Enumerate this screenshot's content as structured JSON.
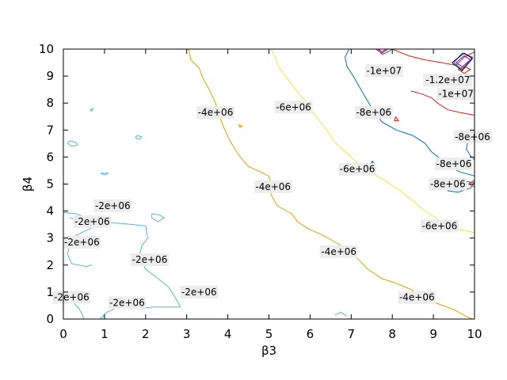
{
  "chart_data": {
    "type": "contour",
    "title": "",
    "xlabel": "β3",
    "ylabel": "β4",
    "xlim": [
      0,
      10
    ],
    "ylim": [
      0,
      10
    ],
    "x_ticks": [
      "0",
      "1",
      "2",
      "3",
      "4",
      "5",
      "6",
      "7",
      "8",
      "9",
      "10"
    ],
    "y_ticks": [
      "0",
      "1",
      "2",
      "3",
      "4",
      "5",
      "6",
      "7",
      "8",
      "9",
      "10"
    ],
    "grid": false,
    "levels": [
      {
        "level": "-2e+06",
        "color": "#56b4e9",
        "paths": [
          [
            [
              0.15,
              3.75
            ],
            [
              0.5,
              3.6
            ],
            [
              0.9,
              3.6
            ],
            [
              1.3,
              3.55
            ],
            [
              1.7,
              3.5
            ],
            [
              2.0,
              3.45
            ],
            [
              2.05,
              3.0
            ],
            [
              1.9,
              2.7
            ],
            [
              1.85,
              2.3
            ],
            [
              2.0,
              1.85
            ],
            [
              2.3,
              1.5
            ],
            [
              2.55,
              1.2
            ],
            [
              2.7,
              0.85
            ],
            [
              2.85,
              0.45
            ],
            [
              2.6,
              0.45
            ],
            [
              2.2,
              0.45
            ],
            [
              1.9,
              0.4
            ],
            [
              1.6,
              0.45
            ],
            [
              1.35,
              0.45
            ],
            [
              1.05,
              0.25
            ],
            [
              0.9,
              0.0
            ]
          ],
          [
            [
              0.0,
              3.95
            ],
            [
              0.3,
              3.9
            ],
            [
              0.5,
              3.8
            ],
            [
              0.9,
              3.6
            ],
            [
              0.8,
              3.45
            ],
            [
              0.5,
              3.25
            ],
            [
              0.25,
              3.05
            ],
            [
              0.15,
              2.75
            ],
            [
              0.1,
              2.4
            ],
            [
              0.2,
              2.05
            ],
            [
              0.55,
              1.95
            ],
            [
              0.7,
              2.0
            ]
          ],
          [
            [
              0.0,
              0.8
            ],
            [
              0.2,
              0.65
            ],
            [
              0.35,
              0.45
            ],
            [
              0.45,
              0.2
            ],
            [
              0.5,
              0.0
            ]
          ],
          [
            [
              0.15,
              6.6
            ],
            [
              0.3,
              6.55
            ],
            [
              0.35,
              6.45
            ],
            [
              0.2,
              6.4
            ],
            [
              0.1,
              6.5
            ],
            [
              0.15,
              6.6
            ]
          ],
          [
            [
              1.8,
              6.8
            ],
            [
              1.9,
              6.75
            ],
            [
              1.85,
              6.65
            ],
            [
              1.75,
              6.72
            ],
            [
              1.8,
              6.8
            ]
          ],
          [
            [
              2.15,
              3.9
            ],
            [
              2.35,
              3.85
            ],
            [
              2.45,
              3.75
            ],
            [
              2.3,
              3.6
            ],
            [
              2.15,
              3.75
            ],
            [
              2.15,
              3.9
            ]
          ],
          [
            [
              0.9,
              5.4
            ],
            [
              1.1,
              5.4
            ],
            [
              1.0,
              5.35
            ],
            [
              0.9,
              5.4
            ]
          ],
          [
            [
              0.65,
              7.75
            ],
            [
              0.72,
              7.8
            ],
            [
              0.68,
              7.7
            ],
            [
              0.65,
              7.75
            ]
          ],
          [
            [
              6.6,
              0.15
            ],
            [
              6.75,
              0.25
            ],
            [
              6.9,
              0.1
            ]
          ]
        ],
        "labels": [
          {
            "text": "-2e+06",
            "x": 1.2,
            "y": 4.2
          },
          {
            "text": "-2e+06",
            "x": 0.7,
            "y": 3.6
          },
          {
            "text": "-2e+06",
            "x": 0.45,
            "y": 2.85
          },
          {
            "text": "-2e+06",
            "x": 2.1,
            "y": 2.2
          },
          {
            "text": "-2e+06",
            "x": 3.3,
            "y": 1.0
          },
          {
            "text": "-2e+06",
            "x": 0.2,
            "y": 0.8
          },
          {
            "text": "-2e+06",
            "x": 1.55,
            "y": 0.6
          }
        ]
      },
      {
        "level": "-4e+06",
        "color": "#e69f00",
        "paths": [
          [
            [
              3.05,
              10.0
            ],
            [
              3.1,
              9.6
            ],
            [
              3.3,
              9.3
            ],
            [
              3.4,
              8.9
            ],
            [
              3.55,
              8.5
            ],
            [
              3.7,
              8.0
            ],
            [
              3.8,
              7.5
            ],
            [
              3.9,
              7.1
            ],
            [
              4.05,
              6.6
            ],
            [
              4.25,
              6.1
            ],
            [
              4.5,
              5.65
            ],
            [
              4.8,
              5.45
            ],
            [
              5.0,
              5.3
            ],
            [
              5.05,
              4.9
            ],
            [
              5.05,
              4.6
            ],
            [
              5.2,
              4.2
            ],
            [
              5.55,
              3.9
            ],
            [
              5.7,
              3.6
            ],
            [
              5.95,
              3.35
            ],
            [
              6.25,
              3.15
            ],
            [
              6.55,
              2.9
            ],
            [
              6.9,
              2.6
            ],
            [
              7.15,
              2.25
            ],
            [
              7.4,
              1.85
            ],
            [
              7.75,
              1.5
            ],
            [
              8.05,
              1.35
            ],
            [
              8.45,
              1.1
            ],
            [
              8.7,
              0.85
            ],
            [
              9.05,
              0.6
            ],
            [
              9.5,
              0.35
            ],
            [
              9.8,
              0.1
            ],
            [
              9.95,
              0.0
            ]
          ],
          [
            [
              4.25,
              7.2
            ],
            [
              4.35,
              7.15
            ],
            [
              4.3,
              7.1
            ],
            [
              4.25,
              7.2
            ]
          ]
        ],
        "labels": [
          {
            "text": "-4e+06",
            "x": 3.7,
            "y": 7.65
          },
          {
            "text": "-4e+06",
            "x": 5.1,
            "y": 4.9
          },
          {
            "text": "-4e+06",
            "x": 6.7,
            "y": 2.5
          },
          {
            "text": "-4e+06",
            "x": 8.6,
            "y": 0.8
          }
        ]
      },
      {
        "level": "-6e+06",
        "color": "#f0e442",
        "paths": [
          [
            [
              5.05,
              10.0
            ],
            [
              5.15,
              9.7
            ],
            [
              5.25,
              9.3
            ],
            [
              5.4,
              9.0
            ],
            [
              5.55,
              8.7
            ],
            [
              5.7,
              8.4
            ],
            [
              5.9,
              8.05
            ],
            [
              6.1,
              7.6
            ],
            [
              6.3,
              7.2
            ],
            [
              6.45,
              6.9
            ],
            [
              6.6,
              6.55
            ],
            [
              6.85,
              6.2
            ],
            [
              7.1,
              5.85
            ],
            [
              7.35,
              5.5
            ],
            [
              7.75,
              5.2
            ],
            [
              8.1,
              4.85
            ],
            [
              8.45,
              4.45
            ],
            [
              8.75,
              4.05
            ],
            [
              9.05,
              3.75
            ],
            [
              9.35,
              3.45
            ],
            [
              9.7,
              3.3
            ],
            [
              10.0,
              3.2
            ]
          ]
        ],
        "labels": [
          {
            "text": "-6e+06",
            "x": 5.6,
            "y": 7.85
          },
          {
            "text": "-6e+06",
            "x": 7.15,
            "y": 5.55
          },
          {
            "text": "-6e+06",
            "x": 9.15,
            "y": 3.45
          }
        ]
      },
      {
        "level": "-8e+06",
        "color": "#0072b2",
        "paths": [
          [
            [
              6.95,
              10.0
            ],
            [
              6.85,
              9.7
            ],
            [
              6.9,
              9.35
            ],
            [
              7.05,
              9.0
            ],
            [
              7.2,
              8.6
            ],
            [
              7.35,
              8.2
            ],
            [
              7.55,
              7.7
            ],
            [
              7.75,
              7.3
            ],
            [
              8.1,
              7.0
            ],
            [
              8.5,
              6.8
            ],
            [
              8.8,
              6.5
            ],
            [
              8.95,
              6.2
            ],
            [
              9.2,
              5.9
            ],
            [
              9.45,
              5.6
            ],
            [
              9.65,
              5.45
            ],
            [
              10.0,
              5.3
            ]
          ],
          [
            [
              10.0,
              6.9
            ],
            [
              9.85,
              6.65
            ],
            [
              9.8,
              6.3
            ],
            [
              9.9,
              6.05
            ],
            [
              10.0,
              5.9
            ]
          ],
          [
            [
              9.25,
              4.95
            ],
            [
              9.5,
              5.05
            ],
            [
              9.75,
              5.1
            ],
            [
              10.0,
              5.05
            ],
            [
              9.9,
              4.85
            ],
            [
              9.6,
              4.7
            ],
            [
              9.35,
              4.75
            ],
            [
              9.25,
              4.95
            ]
          ],
          [
            [
              9.5,
              9.5
            ],
            [
              9.7,
              9.85
            ],
            [
              9.95,
              9.7
            ],
            [
              9.7,
              9.25
            ],
            [
              9.5,
              9.5
            ]
          ],
          [
            [
              7.65,
              10.0
            ],
            [
              7.75,
              9.8
            ],
            [
              7.9,
              9.9
            ],
            [
              8.0,
              10.0
            ]
          ],
          [
            [
              7.48,
              5.8
            ],
            [
              7.52,
              5.85
            ],
            [
              7.55,
              5.78
            ],
            [
              7.48,
              5.8
            ]
          ]
        ],
        "labels": [
          {
            "text": "-8e+06",
            "x": 7.55,
            "y": 7.65
          },
          {
            "text": "-8e+06",
            "x": 9.95,
            "y": 6.75
          },
          {
            "text": "-8e+06",
            "x": 9.5,
            "y": 5.75
          },
          {
            "text": "-8e+06",
            "x": 9.35,
            "y": 5.0
          }
        ]
      },
      {
        "level": "-1e+07",
        "color": "#e51e10",
        "paths": [
          [
            [
              8.0,
              10.0
            ],
            [
              8.4,
              9.75
            ],
            [
              8.8,
              9.6
            ],
            [
              9.2,
              9.5
            ],
            [
              9.55,
              9.4
            ],
            [
              9.75,
              9.7
            ],
            [
              10.0,
              9.9
            ]
          ],
          [
            [
              8.45,
              8.45
            ],
            [
              8.7,
              8.35
            ],
            [
              8.95,
              8.2
            ],
            [
              9.1,
              8.0
            ],
            [
              9.35,
              7.75
            ],
            [
              9.65,
              7.65
            ],
            [
              10.0,
              7.55
            ]
          ],
          [
            [
              7.6,
              10.0
            ],
            [
              7.75,
              9.85
            ],
            [
              7.9,
              10.0
            ]
          ],
          [
            [
              9.6,
              9.25
            ],
            [
              9.75,
              9.35
            ],
            [
              9.9,
              9.25
            ],
            [
              9.75,
              9.1
            ],
            [
              9.6,
              9.25
            ]
          ],
          [
            [
              9.85,
              5.0
            ],
            [
              10.0,
              5.15
            ],
            [
              10.0,
              4.9
            ],
            [
              9.85,
              5.0
            ]
          ],
          [
            [
              8.08,
              7.5
            ],
            [
              8.15,
              7.35
            ],
            [
              8.05,
              7.35
            ],
            [
              8.08,
              7.5
            ]
          ]
        ],
        "labels": [
          {
            "text": "-1e+07",
            "x": 7.8,
            "y": 9.2
          },
          {
            "text": "-1e+07",
            "x": 9.55,
            "y": 8.35
          }
        ]
      },
      {
        "level": "-1.2e+07",
        "color": "#000000",
        "paths": [
          [
            [
              9.45,
              9.5
            ],
            [
              9.75,
              9.85
            ],
            [
              9.95,
              9.65
            ],
            [
              9.7,
              9.2
            ],
            [
              9.45,
              9.5
            ]
          ]
        ],
        "labels": [
          {
            "text": "-1.2e+07",
            "x": 9.35,
            "y": 8.85
          }
        ]
      },
      {
        "level": "-1.4e+07",
        "color": "#9400d3",
        "paths": [
          [
            [
              9.55,
              9.5
            ],
            [
              9.75,
              9.75
            ],
            [
              9.9,
              9.6
            ],
            [
              9.7,
              9.35
            ],
            [
              9.55,
              9.5
            ]
          ],
          [
            [
              7.65,
              10.0
            ],
            [
              7.75,
              9.9
            ],
            [
              7.85,
              10.0
            ]
          ]
        ],
        "labels": []
      }
    ]
  }
}
